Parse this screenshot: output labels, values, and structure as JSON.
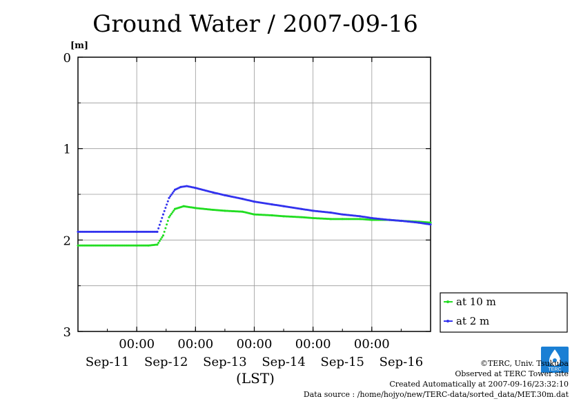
{
  "chart_data": {
    "type": "scatter",
    "title": "Ground Water / 2007-09-16",
    "ylabel": "[m]",
    "xlabel": "(LST)",
    "ylim": [
      3,
      0
    ],
    "yticks": [
      "0",
      "1",
      "2",
      "3"
    ],
    "x_tick_time": "00:00",
    "x_tick_dates": [
      "Sep-11",
      "Sep-12",
      "Sep-13",
      "Sep-14",
      "Sep-15",
      "Sep-16"
    ],
    "xlim": [
      -1,
      5
    ],
    "grid": true,
    "legend_position": "right",
    "series": [
      {
        "name": "at 10 m",
        "color": "#22dd22",
        "x": [
          -1.0,
          0.0,
          0.2,
          0.35,
          0.45,
          0.55,
          0.65,
          0.8,
          1.0,
          1.3,
          1.5,
          1.8,
          2.0,
          2.3,
          2.5,
          2.8,
          3.0,
          3.3,
          3.5,
          3.8,
          4.0,
          4.3,
          4.5,
          4.8,
          5.0
        ],
        "y": [
          2.06,
          2.06,
          2.06,
          2.05,
          1.95,
          1.75,
          1.66,
          1.63,
          1.65,
          1.67,
          1.68,
          1.69,
          1.72,
          1.73,
          1.74,
          1.75,
          1.76,
          1.77,
          1.77,
          1.77,
          1.78,
          1.78,
          1.79,
          1.8,
          1.81
        ]
      },
      {
        "name": "at 2 m",
        "color": "#3333ee",
        "x": [
          -1.0,
          0.0,
          0.35,
          0.45,
          0.55,
          0.65,
          0.75,
          0.85,
          1.0,
          1.3,
          1.5,
          1.8,
          2.0,
          2.3,
          2.5,
          2.8,
          3.0,
          3.3,
          3.5,
          3.8,
          4.0,
          4.3,
          4.5,
          4.8,
          5.0
        ],
        "y": [
          1.91,
          1.91,
          1.91,
          1.72,
          1.54,
          1.45,
          1.42,
          1.41,
          1.43,
          1.48,
          1.51,
          1.55,
          1.58,
          1.61,
          1.63,
          1.66,
          1.68,
          1.7,
          1.72,
          1.74,
          1.76,
          1.78,
          1.79,
          1.81,
          1.83
        ]
      }
    ]
  },
  "footer": {
    "credit": "©TERC, Univ. Tsukuba",
    "site": "Observed at TERC Tower site",
    "created": "Created Automatically at 2007-09-16/23:32:10",
    "source": "Data source : /home/hojyo/new/TERC-data/sorted_data/MET.30m.dat"
  },
  "logo": {
    "text": "TERC",
    "color": "#1a7fd4"
  }
}
